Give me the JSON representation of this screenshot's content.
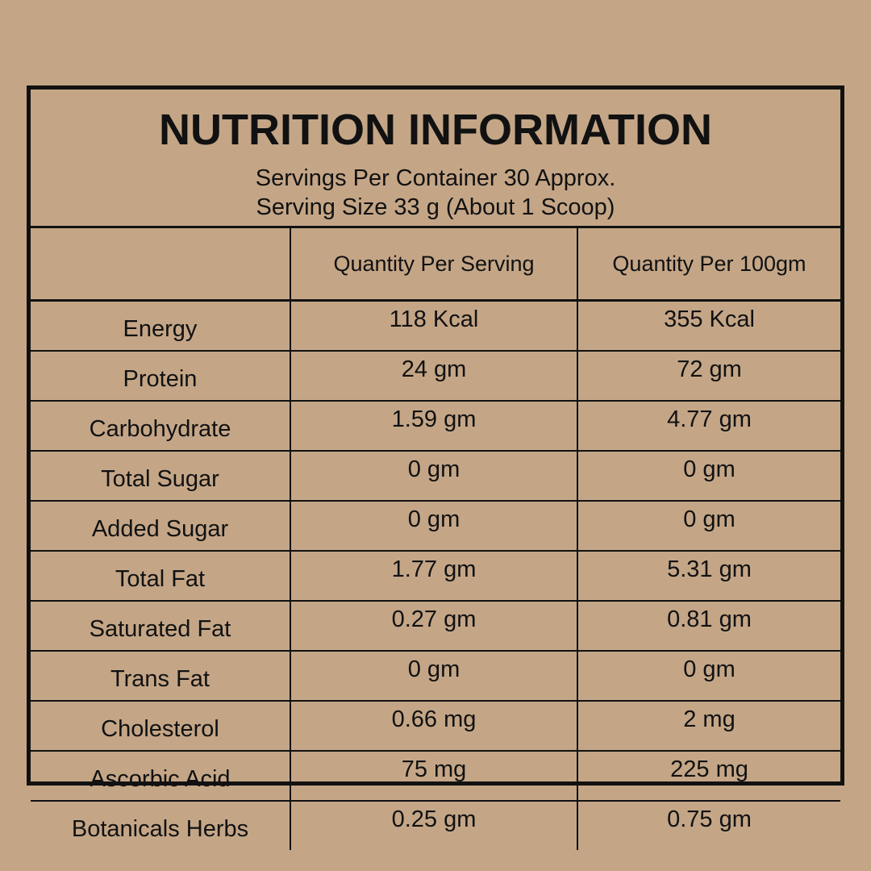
{
  "header": {
    "title": "NUTRITION INFORMATION",
    "servings": "Servings Per Container 30 Approx.",
    "serving_size": "Serving Size 33 g (About 1 Scoop)"
  },
  "columns": [
    "",
    "Quantity Per Serving",
    "Quantity Per 100gm"
  ],
  "rows": [
    {
      "nutrient": "Energy",
      "per_serving": "118 Kcal",
      "per_100gm": "355 Kcal"
    },
    {
      "nutrient": "Protein",
      "per_serving": "24 gm",
      "per_100gm": "72 gm"
    },
    {
      "nutrient": "Carbohydrate",
      "per_serving": "1.59 gm",
      "per_100gm": "4.77 gm"
    },
    {
      "nutrient": "Total Sugar",
      "per_serving": "0 gm",
      "per_100gm": "0 gm"
    },
    {
      "nutrient": "Added Sugar",
      "per_serving": "0 gm",
      "per_100gm": "0 gm"
    },
    {
      "nutrient": "Total Fat",
      "per_serving": "1.77 gm",
      "per_100gm": "5.31 gm"
    },
    {
      "nutrient": "Saturated Fat",
      "per_serving": "0.27 gm",
      "per_100gm": "0.81 gm"
    },
    {
      "nutrient": "Trans Fat",
      "per_serving": "0 gm",
      "per_100gm": "0 gm"
    },
    {
      "nutrient": "Cholesterol",
      "per_serving": "0.66 mg",
      "per_100gm": "2 mg"
    },
    {
      "nutrient": "Ascorbic Acid",
      "per_serving": "75 mg",
      "per_100gm": "225 mg"
    },
    {
      "nutrient": "Botanicals Herbs",
      "per_serving": "0.25 gm",
      "per_100gm": "0.75 gm"
    }
  ],
  "colors": {
    "background": "#c4a687",
    "ink": "#111111"
  }
}
